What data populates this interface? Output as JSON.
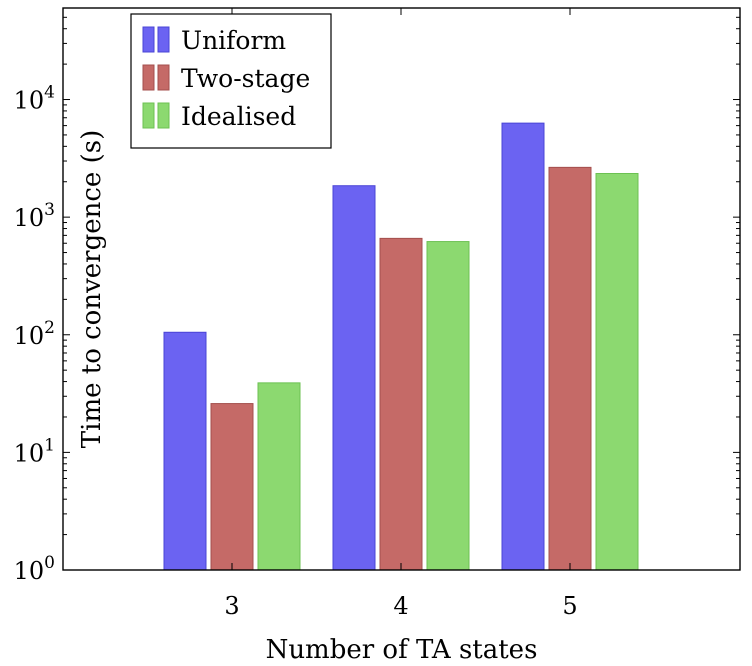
{
  "chart_data": {
    "type": "bar",
    "xlabel": "Number of TA states",
    "ylabel": "Time to convergence (s)",
    "yscale": "log",
    "ylim": [
      1,
      60000
    ],
    "categories": [
      "3",
      "4",
      "5"
    ],
    "y_ticks": [
      {
        "value": 1,
        "base": "10",
        "exp": "0"
      },
      {
        "value": 10,
        "base": "10",
        "exp": "1"
      },
      {
        "value": 100,
        "base": "10",
        "exp": "2"
      },
      {
        "value": 1000,
        "base": "10",
        "exp": "3"
      },
      {
        "value": 10000,
        "base": "10",
        "exp": "4"
      }
    ],
    "series": [
      {
        "name": "Uniform",
        "color": "#6b63f2",
        "edge": "#4a44d6",
        "values": [
          105,
          1850,
          6300
        ]
      },
      {
        "name": "Two-stage",
        "color": "#c56a67",
        "edge": "#a44f4c",
        "values": [
          26,
          660,
          2650
        ]
      },
      {
        "name": "Idealised",
        "color": "#8cd970",
        "edge": "#6cc152",
        "values": [
          39,
          620,
          2350
        ]
      }
    ],
    "grid": false,
    "legend_position": "top-left"
  }
}
